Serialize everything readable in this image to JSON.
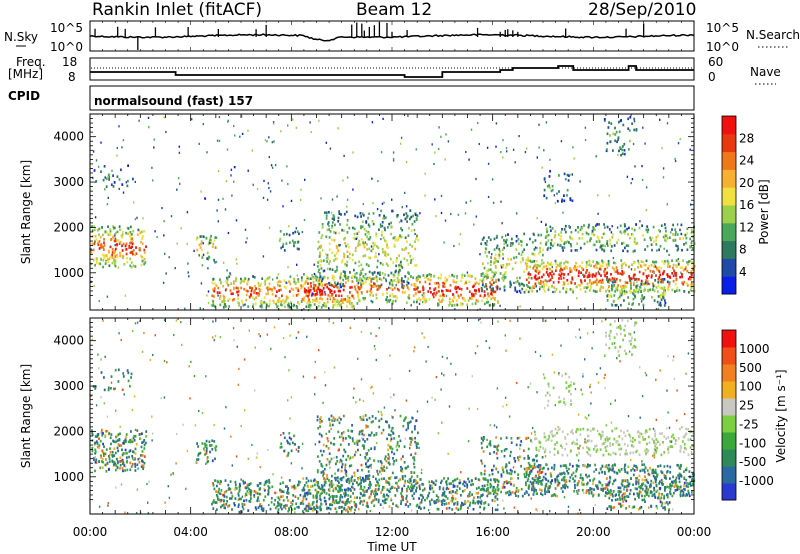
{
  "header": {
    "title": "Rankin Inlet (fitACF)",
    "beam": "Beam 12",
    "date": "28/Sep/2010"
  },
  "nsky_panel": {
    "left_label": "N.Sky",
    "left_ticks": [
      "10^5",
      "10^0"
    ],
    "right_label": "N.Search",
    "right_ticks": [
      "10^5",
      "10^0"
    ]
  },
  "freq_panel": {
    "left_label_top": "Freq.",
    "left_label_bottom": "[MHz]",
    "left_ticks": [
      "18",
      "8"
    ],
    "right_label": "Nave",
    "right_ticks": [
      "60",
      "0"
    ]
  },
  "cpid": {
    "label": "CPID",
    "program": "normalsound (fast) 157"
  },
  "chart_data": [
    {
      "type": "heatmap",
      "name": "power",
      "ylabel": "Slant Range [km]",
      "xlabel": "",
      "xlim_hours": [
        0,
        24
      ],
      "ylim": [
        180,
        4500
      ],
      "yticks": [
        "1000",
        "2000",
        "3000",
        "4000"
      ],
      "colorbar": {
        "label": "Power [dB]",
        "ticks": [
          "4",
          "8",
          "12",
          "16",
          "20",
          "24",
          "28"
        ],
        "colors": [
          "#0a1ee8",
          "#1f4aa8",
          "#2f7a5e",
          "#4aa85a",
          "#9cd04a",
          "#f0e040",
          "#f8b030",
          "#f07818",
          "#e83810",
          "#f01010"
        ]
      }
    },
    {
      "type": "heatmap",
      "name": "velocity",
      "ylabel": "Slant Range [km]",
      "xlabel": "Time UT",
      "xlim_hours": [
        0,
        24
      ],
      "ylim": [
        180,
        4500
      ],
      "yticks": [
        "1000",
        "2000",
        "3000",
        "4000"
      ],
      "xticks": [
        "00:00",
        "04:00",
        "08:00",
        "12:00",
        "16:00",
        "20:00",
        "00:00"
      ],
      "colorbar": {
        "label": "Velocity [m s⁻¹]",
        "ticks": [
          "1000",
          "500",
          "100",
          "25",
          "-25",
          "-100",
          "-500",
          "-1000"
        ],
        "colors": [
          "#2a3ad0",
          "#2a6aa0",
          "#2f8a5a",
          "#3aa83a",
          "#7ad040",
          "#c8c8c0",
          "#f0b020",
          "#f08020",
          "#f05018",
          "#f01010"
        ]
      }
    }
  ]
}
